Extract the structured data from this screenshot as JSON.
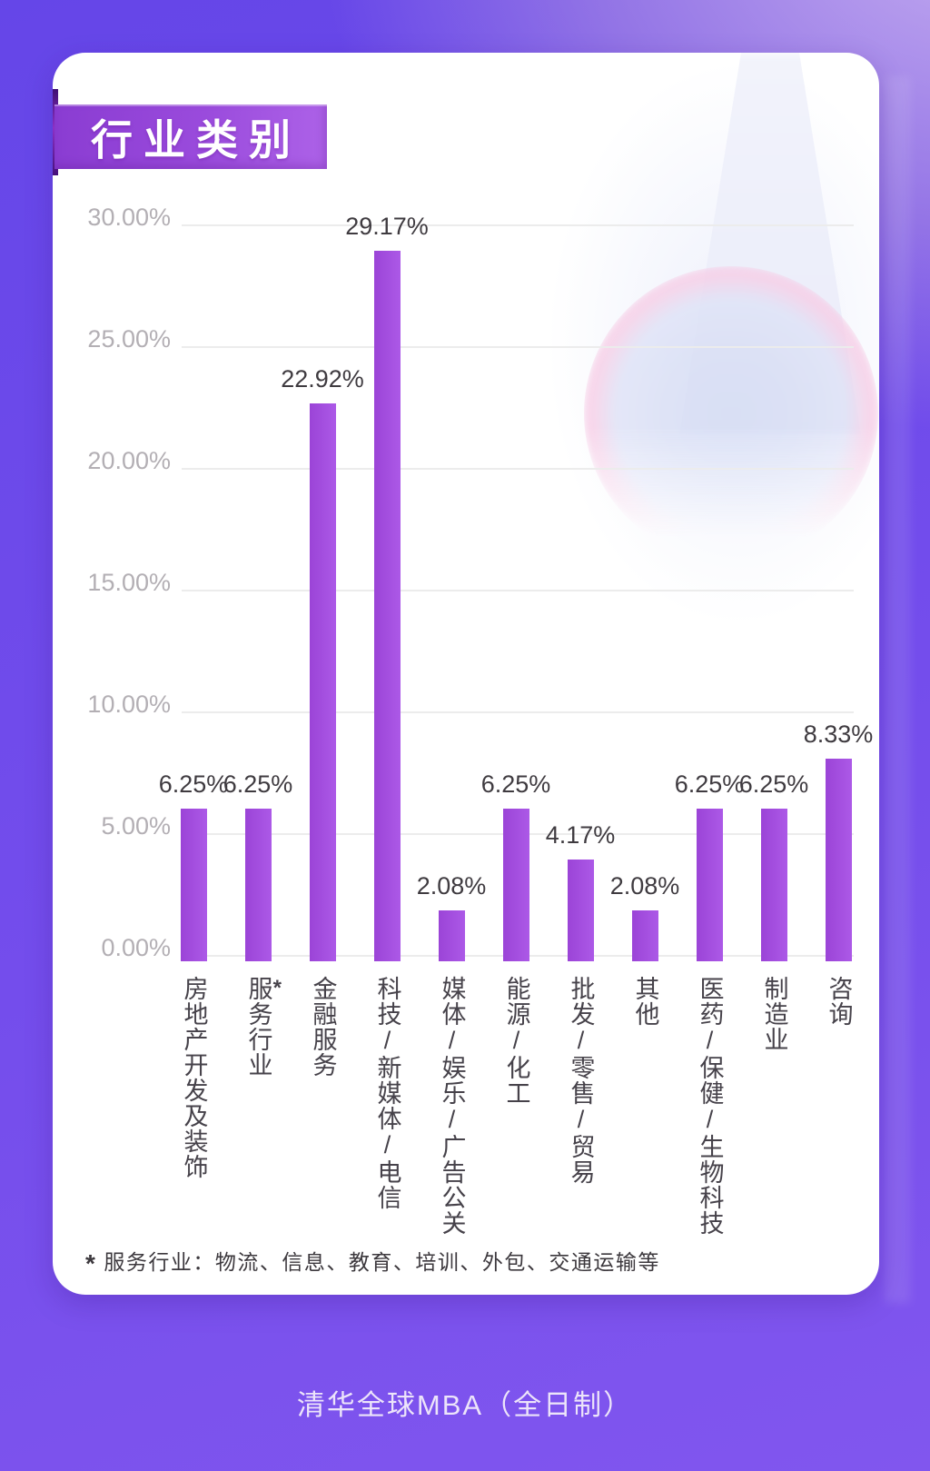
{
  "page": {
    "title_badge": "行业类别",
    "footnote": {
      "marker": "*",
      "text": "服务行业：物流、信息、教育、培训、外包、交通运输等"
    },
    "footer": "清华全球MBA（全日制）"
  },
  "colors": {
    "background_top_left": "#6546e8",
    "background_top_right": "#ab8fe3",
    "background_bottom": "#8156ee",
    "card": "#ffffff",
    "badge_start": "#8a3cd2",
    "badge_end": "#ad62e8",
    "bar_dark": "#9b44d7",
    "bar_light": "#ac59e7",
    "gridline": "#ececec",
    "axis_tick_text": "#b3afb4",
    "value_label_text": "#3f3b40",
    "category_text": "#46424a"
  },
  "chart_data": {
    "type": "bar",
    "title": "行业类别",
    "categories": [
      "房地产开发及装饰",
      "服务行业",
      "金融服务",
      "科技/新媒体/电信",
      "媒体/娱乐/广告公关",
      "能源/化工",
      "批发/零售/贸易",
      "其他",
      "医药/保健/生物科技",
      "制造业",
      "咨询"
    ],
    "category_notes": [
      "",
      "*",
      "",
      "",
      "",
      "",
      "",
      "",
      "",
      "",
      ""
    ],
    "values": [
      6.25,
      6.25,
      22.92,
      29.17,
      2.08,
      6.25,
      4.17,
      2.08,
      6.25,
      6.25,
      8.33
    ],
    "value_labels": [
      "6.25%",
      "6.25%",
      "22.92%",
      "29.17%",
      "2.08%",
      "6.25%",
      "4.17%",
      "2.08%",
      "6.25%",
      "6.25%",
      "8.33%"
    ],
    "xlabel": "",
    "ylabel": "",
    "ylim": [
      0,
      30
    ],
    "ytick_step": 5,
    "yticks": [
      "0.00%",
      "5.00%",
      "10.00%",
      "15.00%",
      "20.00%",
      "25.00%",
      "30.00%"
    ],
    "grid": true,
    "legend": false
  }
}
